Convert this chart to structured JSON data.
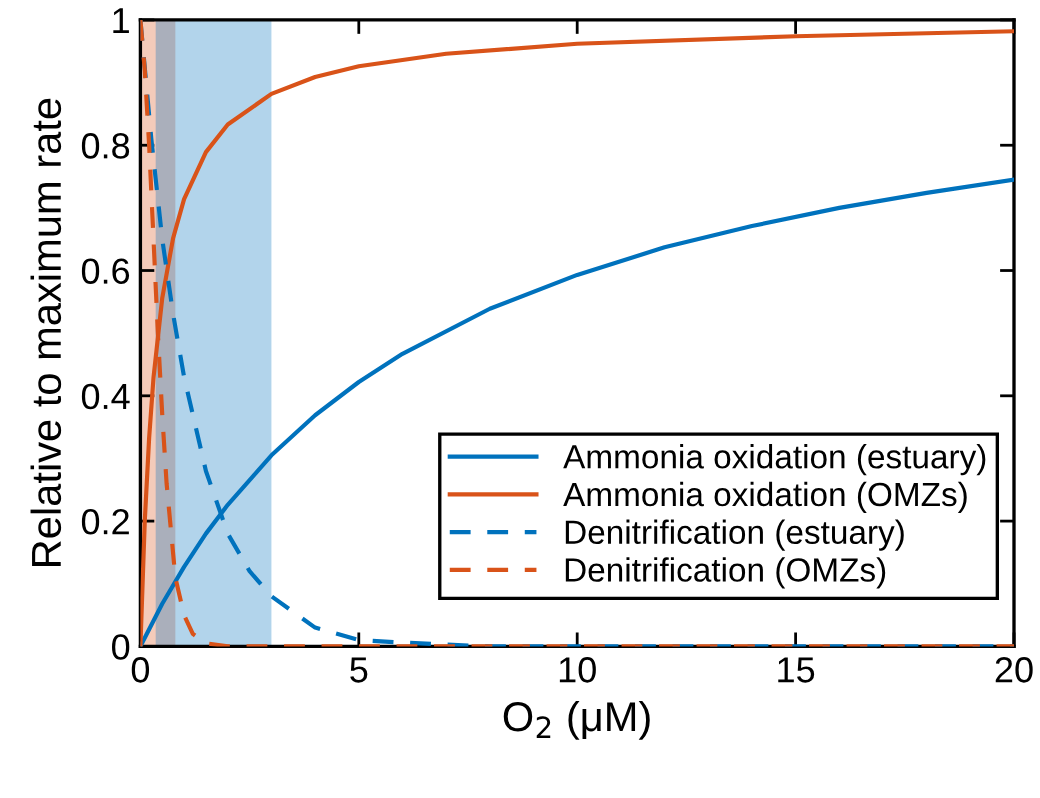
{
  "chart_data": {
    "type": "line",
    "xlabel": "O$_{2}$ (μM)",
    "ylabel": "Relative to maximum rate",
    "xlim": [
      0,
      20
    ],
    "xticks": [
      0,
      5,
      10,
      15,
      20
    ],
    "ylim": [
      0,
      1
    ],
    "yticks": [
      0,
      0.2,
      0.4,
      0.6,
      0.8,
      1
    ],
    "legend": "bottom right",
    "grid": false,
    "bands": [
      {
        "axis": "x",
        "from": 0,
        "to": 0.8,
        "color": "#d95319"
      },
      {
        "axis": "x",
        "from": 0.35,
        "to": 3,
        "color": "#0072bd"
      }
    ],
    "series": [
      {
        "name": "Ammonia oxidation (estuary)",
        "color": "#0072bd",
        "line_style": "solid",
        "x": [
          0,
          0.5,
          1,
          1.5,
          2,
          3,
          4,
          5,
          6,
          8,
          10,
          12,
          14,
          16,
          18,
          20
        ],
        "values": [
          0,
          0.068,
          0.127,
          0.18,
          0.226,
          0.305,
          0.369,
          0.422,
          0.467,
          0.539,
          0.593,
          0.637,
          0.671,
          0.7,
          0.724,
          0.745
        ]
      },
      {
        "name": "Ammonia oxidation (OMZs)",
        "color": "#d95319",
        "line_style": "solid",
        "x": [
          0,
          0.1,
          0.2,
          0.3,
          0.5,
          0.75,
          1,
          1.5,
          2,
          3,
          4,
          5,
          7,
          10,
          15,
          20
        ],
        "values": [
          0,
          0.2,
          0.333,
          0.429,
          0.556,
          0.652,
          0.714,
          0.789,
          0.833,
          0.882,
          0.909,
          0.926,
          0.946,
          0.962,
          0.974,
          0.982
        ]
      },
      {
        "name": "Denitrification (estuary)",
        "color": "#0072bd",
        "line_style": "dashed",
        "x": [
          0,
          0.25,
          0.5,
          0.75,
          1,
          1.5,
          2,
          2.5,
          3,
          4,
          5,
          6,
          8,
          10,
          20
        ],
        "values": [
          1,
          0.81,
          0.65,
          0.53,
          0.43,
          0.28,
          0.18,
          0.12,
          0.08,
          0.03,
          0.01,
          0.006,
          0,
          0,
          0
        ]
      },
      {
        "name": "Denitrification (OMZs)",
        "color": "#d95319",
        "line_style": "dashed",
        "x": [
          0,
          0.1,
          0.2,
          0.3,
          0.4,
          0.5,
          0.6,
          0.8,
          1,
          1.2,
          1.5,
          2,
          3,
          20
        ],
        "values": [
          1,
          0.92,
          0.8,
          0.65,
          0.5,
          0.37,
          0.26,
          0.11,
          0.05,
          0.02,
          0.005,
          0,
          0,
          0
        ]
      }
    ]
  }
}
